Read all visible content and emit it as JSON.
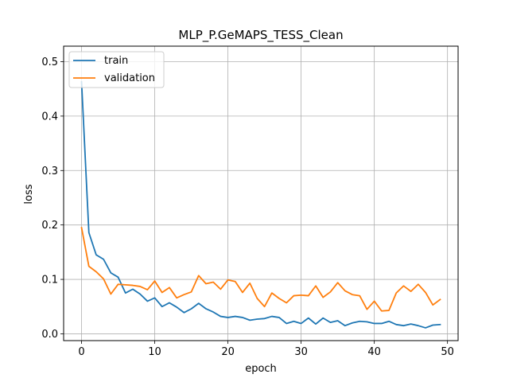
{
  "chart_data": {
    "type": "line",
    "title": "MLP_P.GeMAPS_TESS_Clean",
    "xlabel": "epoch",
    "ylabel": "loss",
    "xlim": [
      -2.45,
      51.45
    ],
    "ylim": [
      -0.0125,
      0.5285
    ],
    "xticks": [
      0,
      10,
      20,
      30,
      40,
      50
    ],
    "xtick_labels": [
      "0",
      "10",
      "20",
      "30",
      "40",
      "50"
    ],
    "yticks": [
      0.0,
      0.1,
      0.2,
      0.3,
      0.4,
      0.5
    ],
    "ytick_labels": [
      "0.0",
      "0.1",
      "0.2",
      "0.3",
      "0.4",
      "0.5"
    ],
    "grid": true,
    "legend_position": "top-left",
    "x": [
      0,
      1,
      2,
      3,
      4,
      5,
      6,
      7,
      8,
      9,
      10,
      11,
      12,
      13,
      14,
      15,
      16,
      17,
      18,
      19,
      20,
      21,
      22,
      23,
      24,
      25,
      26,
      27,
      28,
      29,
      30,
      31,
      32,
      33,
      34,
      35,
      36,
      37,
      38,
      39,
      40,
      41,
      42,
      43,
      44,
      45,
      46,
      47,
      48,
      49
    ],
    "series": [
      {
        "name": "train",
        "color": "#1f77b4",
        "values": [
          0.463,
          0.186,
          0.145,
          0.137,
          0.112,
          0.104,
          0.075,
          0.082,
          0.073,
          0.06,
          0.066,
          0.05,
          0.057,
          0.049,
          0.039,
          0.046,
          0.056,
          0.046,
          0.04,
          0.032,
          0.03,
          0.032,
          0.03,
          0.025,
          0.027,
          0.028,
          0.032,
          0.03,
          0.019,
          0.023,
          0.019,
          0.029,
          0.018,
          0.029,
          0.021,
          0.024,
          0.015,
          0.02,
          0.023,
          0.022,
          0.019,
          0.019,
          0.023,
          0.017,
          0.015,
          0.018,
          0.015,
          0.011,
          0.016,
          0.017
        ]
      },
      {
        "name": "validation",
        "color": "#ff7f0e",
        "values": [
          0.195,
          0.124,
          0.114,
          0.101,
          0.073,
          0.091,
          0.09,
          0.089,
          0.087,
          0.081,
          0.097,
          0.076,
          0.085,
          0.066,
          0.072,
          0.077,
          0.107,
          0.092,
          0.095,
          0.082,
          0.099,
          0.096,
          0.076,
          0.093,
          0.065,
          0.05,
          0.075,
          0.065,
          0.057,
          0.07,
          0.071,
          0.07,
          0.088,
          0.067,
          0.077,
          0.094,
          0.079,
          0.072,
          0.07,
          0.045,
          0.06,
          0.042,
          0.043,
          0.075,
          0.088,
          0.078,
          0.091,
          0.076,
          0.053,
          0.063
        ]
      }
    ]
  }
}
